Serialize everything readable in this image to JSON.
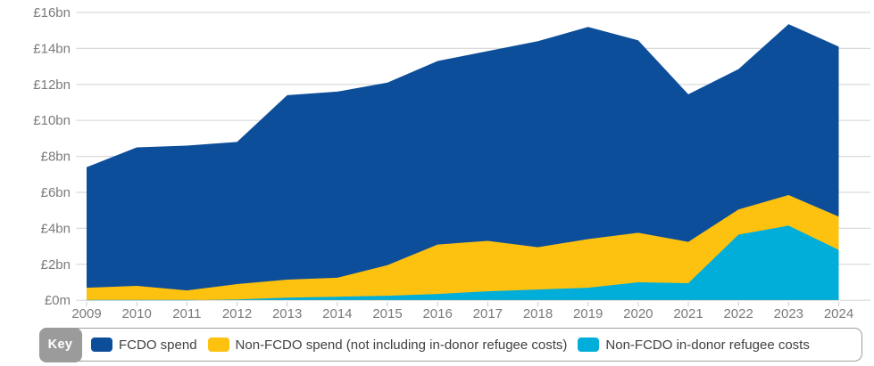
{
  "chart_data": {
    "type": "area",
    "stacked": true,
    "title": "",
    "xlabel": "",
    "ylabel": "",
    "unit": "£bn",
    "x": [
      2009,
      2010,
      2011,
      2012,
      2013,
      2014,
      2015,
      2016,
      2017,
      2018,
      2019,
      2020,
      2021,
      2022,
      2023,
      2024
    ],
    "series": [
      {
        "name": "FCDO spend",
        "color": "#0d4e9b",
        "values": [
          6.7,
          7.7,
          8.05,
          7.9,
          10.25,
          10.35,
          10.15,
          10.2,
          10.55,
          11.45,
          11.8,
          10.7,
          8.2,
          7.8,
          9.5,
          9.45
        ]
      },
      {
        "name": "Non-FCDO spend (not including in-donor refugee costs)",
        "color": "#fdc110",
        "values": [
          0.7,
          0.8,
          0.55,
          0.85,
          1.0,
          1.05,
          1.7,
          2.75,
          2.8,
          2.35,
          2.7,
          2.75,
          2.3,
          1.4,
          1.7,
          1.85
        ]
      },
      {
        "name": "Non-FCDO in-donor refugee costs",
        "color": "#00aed9",
        "values": [
          0,
          0,
          0,
          0.05,
          0.15,
          0.2,
          0.25,
          0.35,
          0.5,
          0.6,
          0.7,
          1.0,
          0.95,
          3.65,
          4.15,
          2.8
        ]
      }
    ],
    "stack_order_bottom_to_top": [
      2,
      1,
      0
    ],
    "y_ticks": [
      {
        "label": "£16bn",
        "value": 16
      },
      {
        "label": "£14bn",
        "value": 14
      },
      {
        "label": "£12bn",
        "value": 12
      },
      {
        "label": "£10bn",
        "value": 10
      },
      {
        "label": "£8bn",
        "value": 8
      },
      {
        "label": "£6bn",
        "value": 6
      },
      {
        "label": "£4bn",
        "value": 4
      },
      {
        "label": "£2bn",
        "value": 2
      },
      {
        "label": "£0m",
        "value": 0
      }
    ],
    "ylim": [
      0,
      16
    ],
    "grid": "horizontal",
    "legend": {
      "position": "bottom",
      "key_label": "Key"
    },
    "colors": {
      "gridline": "#d9d9d9",
      "axis_text": "#7b7b7b",
      "x_tick_mark": "#cccccc",
      "legend_border": "#9e9e9e",
      "key_badge_bg": "#9b9b9b",
      "key_badge_text": "#ffffff",
      "legend_text": "#414141",
      "background": "#ffffff"
    }
  }
}
